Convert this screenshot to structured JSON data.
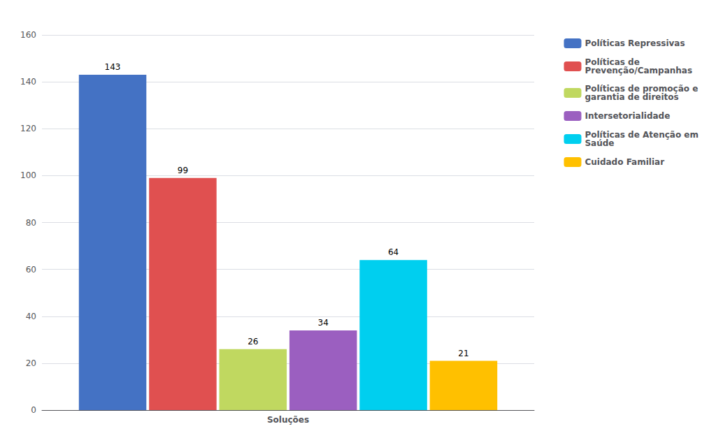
{
  "chart_data": {
    "type": "bar",
    "categories": [
      "Soluções"
    ],
    "series": [
      {
        "name": "Políticas Repressivas",
        "color": "#4472C4",
        "values": [
          143
        ]
      },
      {
        "name": "Políticas de\nPrevenção/Campanhas",
        "color": "#E05050",
        "values": [
          99
        ]
      },
      {
        "name": "Políticas de promoção e\ngarantia de direitos",
        "color": "#C0D860",
        "values": [
          26
        ]
      },
      {
        "name": "Intersetorialidade",
        "color": "#9B5FC0",
        "values": [
          34
        ]
      },
      {
        "name": "Políticas de Atenção em\nSaúde",
        "color": "#00CFEF",
        "values": [
          64
        ]
      },
      {
        "name": "Cuidado Familiar",
        "color": "#FFC000",
        "values": [
          21
        ]
      }
    ],
    "ylim": [
      0,
      160
    ],
    "yticks": [
      0,
      20,
      40,
      60,
      80,
      100,
      120,
      140,
      160
    ],
    "grid": true,
    "legend": "right",
    "data_labels": true
  }
}
